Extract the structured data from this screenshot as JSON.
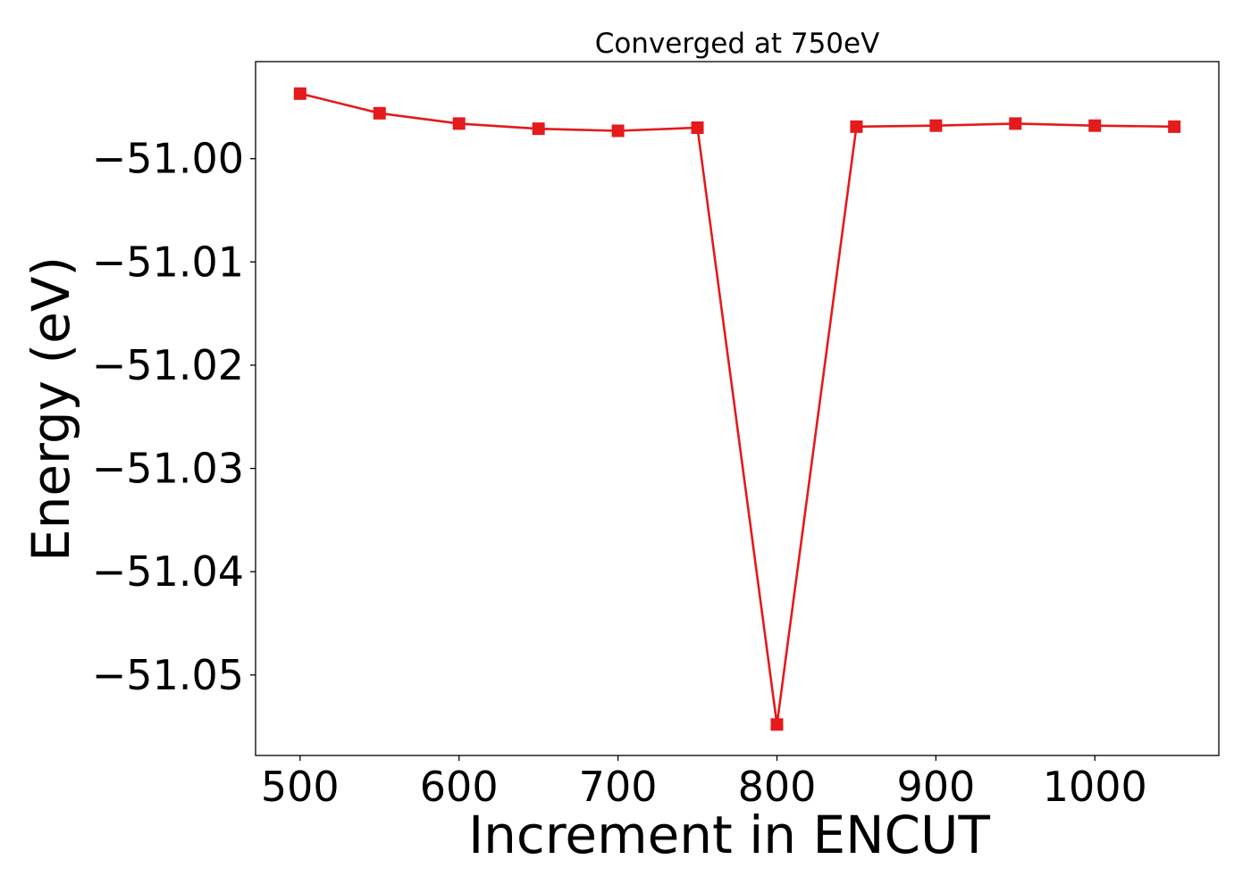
{
  "chart_data": {
    "type": "line",
    "title": "Converged at 750eV",
    "xlabel": "Increment in ENCUT",
    "ylabel": "Energy (eV)",
    "xlim": [
      472,
      1078
    ],
    "ylim": [
      -51.0578,
      -50.9906
    ],
    "x_ticks": [
      500,
      600,
      700,
      800,
      900,
      1000
    ],
    "x_tick_labels": [
      "500",
      "600",
      "700",
      "800",
      "900",
      "1000"
    ],
    "y_ticks": [
      -51.0,
      -51.01,
      -51.02,
      -51.03,
      -51.04,
      -51.05
    ],
    "y_tick_labels": [
      "−51.00",
      "−51.01",
      "−51.02",
      "−51.03",
      "−51.04",
      "−51.05"
    ],
    "grid": false,
    "legend": "none",
    "line_color": "#e41a1c",
    "marker": "square",
    "series": [
      {
        "x": [
          500,
          550,
          600,
          650,
          700,
          750,
          800,
          850,
          900,
          950,
          1000,
          1050
        ],
        "values": [
          -50.9937,
          -50.9956,
          -50.9966,
          -50.9971,
          -50.9973,
          -50.997,
          -51.0548,
          -50.9969,
          -50.9968,
          -50.9966,
          -50.9968,
          -50.9969
        ]
      }
    ]
  }
}
